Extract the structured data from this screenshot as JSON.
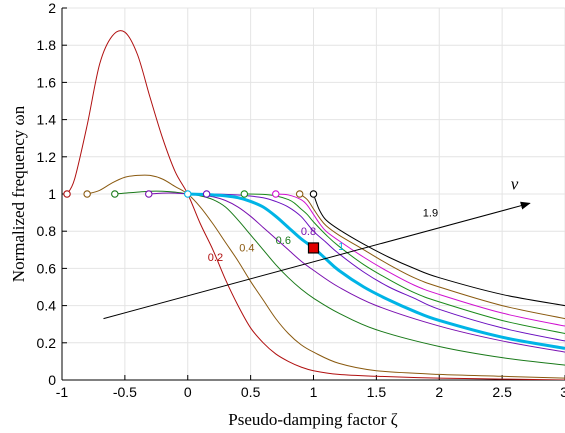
{
  "chart_data": {
    "type": "line",
    "title": "",
    "xlabel": "Pseudo-damping factor ζ",
    "ylabel": "Normalized frequency ωn",
    "xlim": [
      -1,
      3
    ],
    "ylim": [
      0,
      2
    ],
    "xticks": [
      -1,
      -0.5,
      0,
      0.5,
      1,
      1.5,
      2,
      2.5,
      3
    ],
    "xtick_labels": [
      "-1",
      "-0.5",
      "0",
      "0.5",
      "1",
      "1.5",
      "2",
      "2.5",
      "3"
    ],
    "yticks": [
      0,
      0.2,
      0.4,
      0.6,
      0.8,
      1,
      1.2,
      1.4,
      1.6,
      1.8,
      2
    ],
    "ytick_labels": [
      "0",
      "0.2",
      "0.4",
      "0.6",
      "0.8",
      "1",
      "1.2",
      "1.4",
      "1.6",
      "1.8",
      "2"
    ],
    "grid": true,
    "arrow_label": "ν",
    "arrow": {
      "from": [
        -0.67,
        0.33
      ],
      "to": [
        2.72,
        0.95
      ]
    },
    "highlight_point": {
      "x": 1.0,
      "y": 0.71,
      "color": "#e00000"
    },
    "series": [
      {
        "name": "0.2",
        "color": "#b01010",
        "width": 1,
        "label_at": [
          0.22,
          0.64
        ],
        "start_marker": [
          -0.96,
          1.0
        ],
        "x": [
          -0.96,
          -0.9,
          -0.8,
          -0.7,
          -0.6,
          -0.5,
          -0.4,
          -0.3,
          -0.2,
          -0.1,
          0,
          0.1,
          0.2,
          0.3,
          0.4,
          0.5,
          0.6,
          0.7,
          0.8,
          0.9,
          1.0,
          1.2,
          1.5,
          2.0,
          2.5,
          3.0
        ],
        "y": [
          1.0,
          1.08,
          1.37,
          1.7,
          1.85,
          1.87,
          1.75,
          1.52,
          1.3,
          1.12,
          1.0,
          0.84,
          0.7,
          0.54,
          0.4,
          0.28,
          0.2,
          0.14,
          0.1,
          0.07,
          0.05,
          0.03,
          0.02,
          0.01,
          0.005,
          0.0
        ]
      },
      {
        "name": "0.4",
        "color": "#8a5a10",
        "width": 1,
        "label_at": [
          0.47,
          0.69
        ],
        "start_marker": [
          -0.8,
          1.0
        ],
        "x": [
          -0.8,
          -0.7,
          -0.6,
          -0.5,
          -0.4,
          -0.3,
          -0.2,
          -0.1,
          0,
          0.1,
          0.2,
          0.3,
          0.4,
          0.5,
          0.6,
          0.7,
          0.8,
          0.9,
          1.0,
          1.2,
          1.5,
          2.0,
          2.5,
          3.0
        ],
        "y": [
          1.0,
          1.02,
          1.06,
          1.09,
          1.1,
          1.1,
          1.08,
          1.04,
          1.0,
          0.93,
          0.84,
          0.74,
          0.64,
          0.53,
          0.43,
          0.33,
          0.25,
          0.19,
          0.15,
          0.09,
          0.05,
          0.03,
          0.02,
          0.01
        ]
      },
      {
        "name": "0.6",
        "color": "#1a7a1a",
        "width": 1,
        "label_at": [
          0.76,
          0.73
        ],
        "start_marker": [
          -0.58,
          1.0
        ],
        "x": [
          -0.58,
          -0.5,
          -0.4,
          -0.3,
          -0.2,
          -0.1,
          0,
          0.1,
          0.2,
          0.3,
          0.4,
          0.5,
          0.6,
          0.7,
          0.8,
          0.9,
          1.0,
          1.2,
          1.5,
          2.0,
          2.5,
          3.0
        ],
        "y": [
          1.0,
          1.005,
          1.01,
          1.015,
          1.015,
          1.01,
          1.0,
          0.99,
          0.97,
          0.93,
          0.86,
          0.78,
          0.7,
          0.62,
          0.55,
          0.49,
          0.44,
          0.36,
          0.27,
          0.18,
          0.12,
          0.08
        ]
      },
      {
        "name": "0.8",
        "color": "#7a10b0",
        "width": 1,
        "label_at": [
          0.96,
          0.78
        ],
        "start_marker": [
          -0.31,
          1.0
        ],
        "x": [
          -0.31,
          -0.2,
          -0.1,
          0,
          0.1,
          0.2,
          0.3,
          0.4,
          0.5,
          0.6,
          0.7,
          0.8,
          0.9,
          1.0,
          1.2,
          1.5,
          2.0,
          2.5,
          3.0
        ],
        "y": [
          1.0,
          1.005,
          1.005,
          1.0,
          0.995,
          0.985,
          0.965,
          0.93,
          0.88,
          0.82,
          0.76,
          0.7,
          0.64,
          0.59,
          0.5,
          0.4,
          0.29,
          0.21,
          0.15
        ]
      },
      {
        "name": "1",
        "color": "#00b4e6",
        "width": 3,
        "label_at": [
          1.22,
          0.7
        ],
        "start_marker": [
          0.0,
          1.0
        ],
        "x": [
          0,
          0.1,
          0.2,
          0.3,
          0.4,
          0.5,
          0.6,
          0.7,
          0.8,
          0.9,
          1.0,
          1.1,
          1.2,
          1.4,
          1.6,
          1.8,
          2.0,
          2.5,
          3.0
        ],
        "y": [
          1.0,
          0.998,
          0.995,
          0.99,
          0.98,
          0.96,
          0.93,
          0.88,
          0.82,
          0.76,
          0.71,
          0.65,
          0.59,
          0.5,
          0.43,
          0.37,
          0.32,
          0.23,
          0.17
        ]
      },
      {
        "name": "",
        "color": "#6a10c0",
        "width": 1,
        "start_marker": [
          0.15,
          1.0
        ],
        "x": [
          0.15,
          0.3,
          0.45,
          0.6,
          0.7,
          0.8,
          0.9,
          1.0,
          1.1,
          1.2,
          1.4,
          1.6,
          1.8,
          2.0,
          2.5,
          3.0
        ],
        "y": [
          1.0,
          0.998,
          0.992,
          0.98,
          0.96,
          0.93,
          0.88,
          0.8,
          0.74,
          0.68,
          0.58,
          0.5,
          0.44,
          0.38,
          0.28,
          0.21
        ]
      },
      {
        "name": "",
        "color": "#1a8a1a",
        "width": 1,
        "start_marker": [
          0.45,
          1.0
        ],
        "x": [
          0.45,
          0.6,
          0.7,
          0.8,
          0.85,
          0.9,
          0.95,
          1.0,
          1.1,
          1.2,
          1.4,
          1.6,
          1.8,
          2.0,
          2.5,
          3.0
        ],
        "y": [
          1.0,
          0.998,
          0.99,
          0.97,
          0.95,
          0.92,
          0.89,
          0.85,
          0.78,
          0.72,
          0.62,
          0.54,
          0.47,
          0.42,
          0.32,
          0.25
        ]
      },
      {
        "name": "",
        "color": "#d010d0",
        "width": 1,
        "start_marker": [
          0.7,
          1.0
        ],
        "x": [
          0.7,
          0.8,
          0.9,
          0.95,
          1.0,
          1.05,
          1.1,
          1.2,
          1.4,
          1.6,
          1.8,
          2.0,
          2.5,
          3.0
        ],
        "y": [
          1.0,
          0.995,
          0.97,
          0.94,
          0.89,
          0.84,
          0.8,
          0.75,
          0.66,
          0.58,
          0.51,
          0.46,
          0.36,
          0.29
        ]
      },
      {
        "name": "",
        "color": "#8a5a10",
        "width": 1,
        "start_marker": [
          0.89,
          1.0
        ],
        "x": [
          0.89,
          0.95,
          1.0,
          1.05,
          1.1,
          1.2,
          1.4,
          1.6,
          1.8,
          2.0,
          2.5,
          3.0
        ],
        "y": [
          1.0,
          0.97,
          0.92,
          0.87,
          0.83,
          0.78,
          0.7,
          0.62,
          0.55,
          0.5,
          0.4,
          0.33
        ]
      },
      {
        "name": "1.9",
        "color": "#000000",
        "width": 1,
        "label_at": [
          1.93,
          0.88
        ],
        "start_marker": [
          1.0,
          1.0
        ],
        "x": [
          1.0,
          1.02,
          1.05,
          1.1,
          1.2,
          1.4,
          1.6,
          1.8,
          2.0,
          2.5,
          3.0
        ],
        "y": [
          1.0,
          0.96,
          0.91,
          0.86,
          0.81,
          0.73,
          0.66,
          0.6,
          0.55,
          0.46,
          0.4
        ]
      }
    ]
  }
}
